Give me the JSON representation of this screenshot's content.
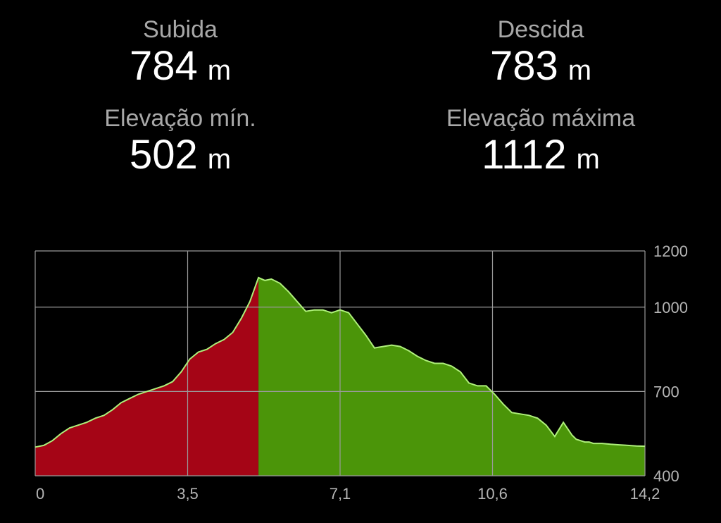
{
  "stats": {
    "ascent": {
      "label": "Subida",
      "value": "784",
      "unit": "m"
    },
    "descent": {
      "label": "Descida",
      "value": "783",
      "unit": "m"
    },
    "min": {
      "label": "Elevação mín.",
      "value": "502",
      "unit": "m"
    },
    "max": {
      "label": "Elevação máxima",
      "value": "1112",
      "unit": "m"
    }
  },
  "colors": {
    "background": "#000000",
    "ascent_fill": "#a50516",
    "descent_fill": "#4b9509",
    "profile_line": "#aef07a",
    "grid": "#9a9a9a",
    "label_text": "#a8a8a8",
    "value_text": "#ffffff"
  },
  "chart_data": {
    "type": "area",
    "title": "",
    "xlabel": "",
    "ylabel": "",
    "xlim": [
      0,
      14.2
    ],
    "ylim": [
      400,
      1200
    ],
    "x_ticks": [
      "0",
      "3,5",
      "7,1",
      "10,6",
      "14,2"
    ],
    "x_tick_values": [
      0,
      3.55,
      7.1,
      10.65,
      14.2
    ],
    "y_ticks": [
      "1200",
      "1000",
      "700",
      "400"
    ],
    "y_tick_values": [
      1200,
      1000,
      700,
      400
    ],
    "grid": true,
    "split_x": 5.2,
    "series": [
      {
        "x": [
          0,
          0.2,
          0.4,
          0.6,
          0.8,
          1.0,
          1.2,
          1.4,
          1.6,
          1.8,
          2.0,
          2.2,
          2.4,
          2.6,
          2.8,
          3.0,
          3.2,
          3.4,
          3.6,
          3.8,
          4.0,
          4.2,
          4.4,
          4.6,
          4.8,
          5.0,
          5.2,
          5.35,
          5.5,
          5.7,
          5.9,
          6.1,
          6.3,
          6.5,
          6.7,
          6.9,
          7.0,
          7.1,
          7.3,
          7.5,
          7.7,
          7.9,
          8.1,
          8.3,
          8.5,
          8.7,
          8.9,
          9.1,
          9.3,
          9.5,
          9.7,
          9.9,
          10.1,
          10.3,
          10.5,
          10.7,
          10.9,
          11.1,
          11.3,
          11.5,
          11.7,
          11.9,
          12.1,
          12.3,
          12.5,
          12.6,
          12.7,
          12.8,
          12.9,
          13.0,
          13.2,
          13.4,
          13.6,
          13.8,
          14.0,
          14.2
        ],
        "y": [
          502,
          508,
          525,
          550,
          570,
          580,
          590,
          605,
          615,
          635,
          660,
          675,
          690,
          700,
          710,
          720,
          735,
          770,
          815,
          840,
          850,
          870,
          885,
          910,
          960,
          1020,
          1105,
          1095,
          1100,
          1085,
          1055,
          1020,
          985,
          990,
          990,
          980,
          985,
          990,
          980,
          940,
          900,
          855,
          860,
          865,
          860,
          845,
          825,
          810,
          800,
          800,
          790,
          770,
          730,
          720,
          720,
          690,
          655,
          625,
          620,
          615,
          605,
          580,
          540,
          590,
          545,
          530,
          525,
          520,
          520,
          515,
          515,
          512,
          510,
          508,
          506,
          505
        ]
      }
    ]
  }
}
